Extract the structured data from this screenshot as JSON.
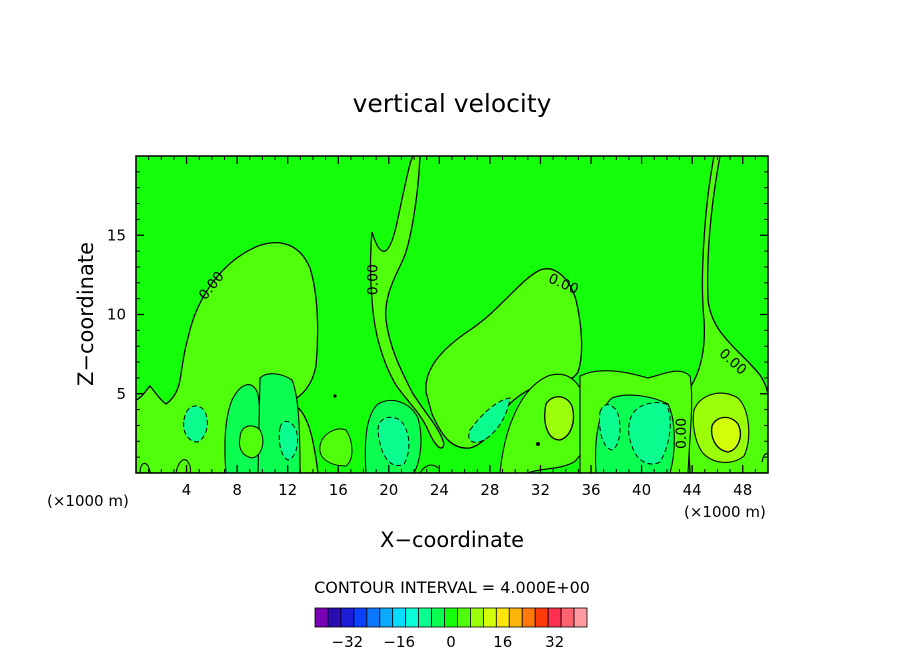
{
  "chart_data": {
    "type": "contour",
    "title": "vertical velocity",
    "xlabel": "X−coordinate",
    "ylabel": "Z−coordinate",
    "x_unit_left": "(×1000 m)",
    "x_unit_right": "(×1000 m)",
    "xlim": [
      0,
      50
    ],
    "ylim": [
      0,
      20
    ],
    "x_ticks": [
      4,
      8,
      12,
      16,
      20,
      24,
      28,
      32,
      36,
      40,
      44,
      48
    ],
    "y_ticks": [
      5,
      10,
      15
    ],
    "contour_labels": [
      {
        "text": "0.00",
        "x": 6.0,
        "y": 11.8,
        "angle": -52
      },
      {
        "text": "0.00",
        "x": 18.8,
        "y": 12.2,
        "angle": -90
      },
      {
        "text": "0.00",
        "x": 33.8,
        "y": 11.9,
        "angle": 24
      },
      {
        "text": "0.00",
        "x": 47.2,
        "y": 7.0,
        "angle": 42
      },
      {
        "text": "0.00",
        "x": 43.2,
        "y": 2.5,
        "angle": -90
      }
    ],
    "contour_interval_text": "CONTOUR INTERVAL = 4.000E+00",
    "colorbar": {
      "colors": [
        "#7a00b5",
        "#2a0cb0",
        "#1c1cd6",
        "#0a40ff",
        "#0a78ff",
        "#0aaaff",
        "#0adcff",
        "#0affd8",
        "#0aff90",
        "#0aff50",
        "#14ff0a",
        "#50ff0a",
        "#9cff0a",
        "#d2ff0a",
        "#ffe60a",
        "#ffb40a",
        "#ff780a",
        "#ff3c0a",
        "#ff3050",
        "#ff6470",
        "#ff9aa0"
      ],
      "tick_labels": [
        "−32",
        "−16",
        "0",
        "16",
        "32"
      ],
      "tick_values": [
        -32,
        -16,
        0,
        16,
        32
      ],
      "vmin": -42,
      "vmax": 42
    },
    "fill_colors": {
      "background": "#14ff0a",
      "weak_positive": "#50ff0a",
      "weak_negative": "#0aff50",
      "moderate_negative": "#0aff90",
      "moderate_positive": "#9cff0a"
    }
  }
}
